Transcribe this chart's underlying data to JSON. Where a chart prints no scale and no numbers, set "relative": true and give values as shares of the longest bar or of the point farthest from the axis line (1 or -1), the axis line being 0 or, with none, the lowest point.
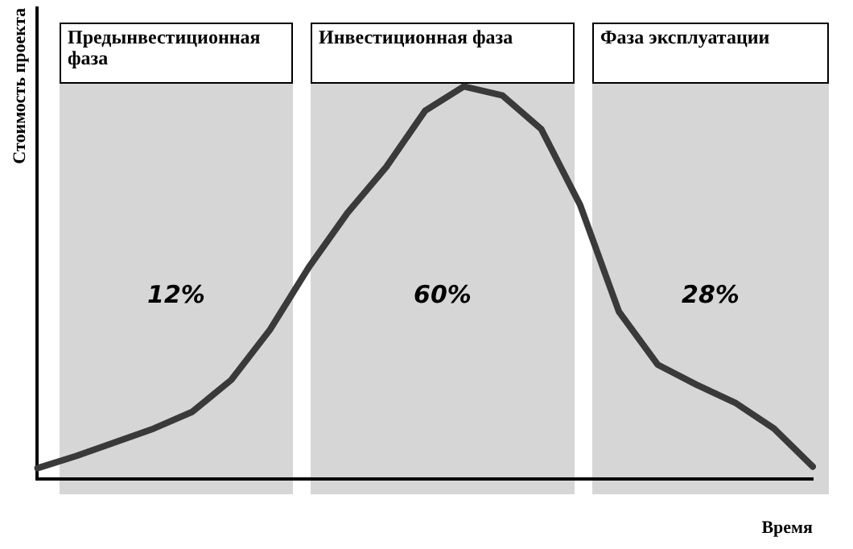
{
  "chart_data": {
    "type": "line",
    "relative": true,
    "xlabel": "Время",
    "ylabel": "Стоимость проекта",
    "categories": [
      null,
      null,
      null,
      null,
      null,
      null,
      null,
      null,
      null,
      null,
      null,
      null,
      null,
      null,
      null,
      null,
      null,
      null,
      null,
      null,
      null
    ],
    "series": [
      {
        "color": "#3a3a3a",
        "values": [
          0.027,
          0.058,
          0.093,
          0.128,
          0.171,
          0.252,
          0.38,
          0.539,
          0.678,
          0.795,
          0.938,
          1,
          0.977,
          0.891,
          0.698,
          0.426,
          0.291,
          0.24,
          0.194,
          0.128,
          0.031
        ]
      }
    ],
    "annotations": [
      "Предынвестиционная фаза",
      "12%",
      "Инвестиционная фаза",
      "60%",
      "Фаза эксплуатации",
      "28%"
    ],
    "grid": false,
    "legend": false,
    "marker": "none",
    "line_style": "solid"
  }
}
